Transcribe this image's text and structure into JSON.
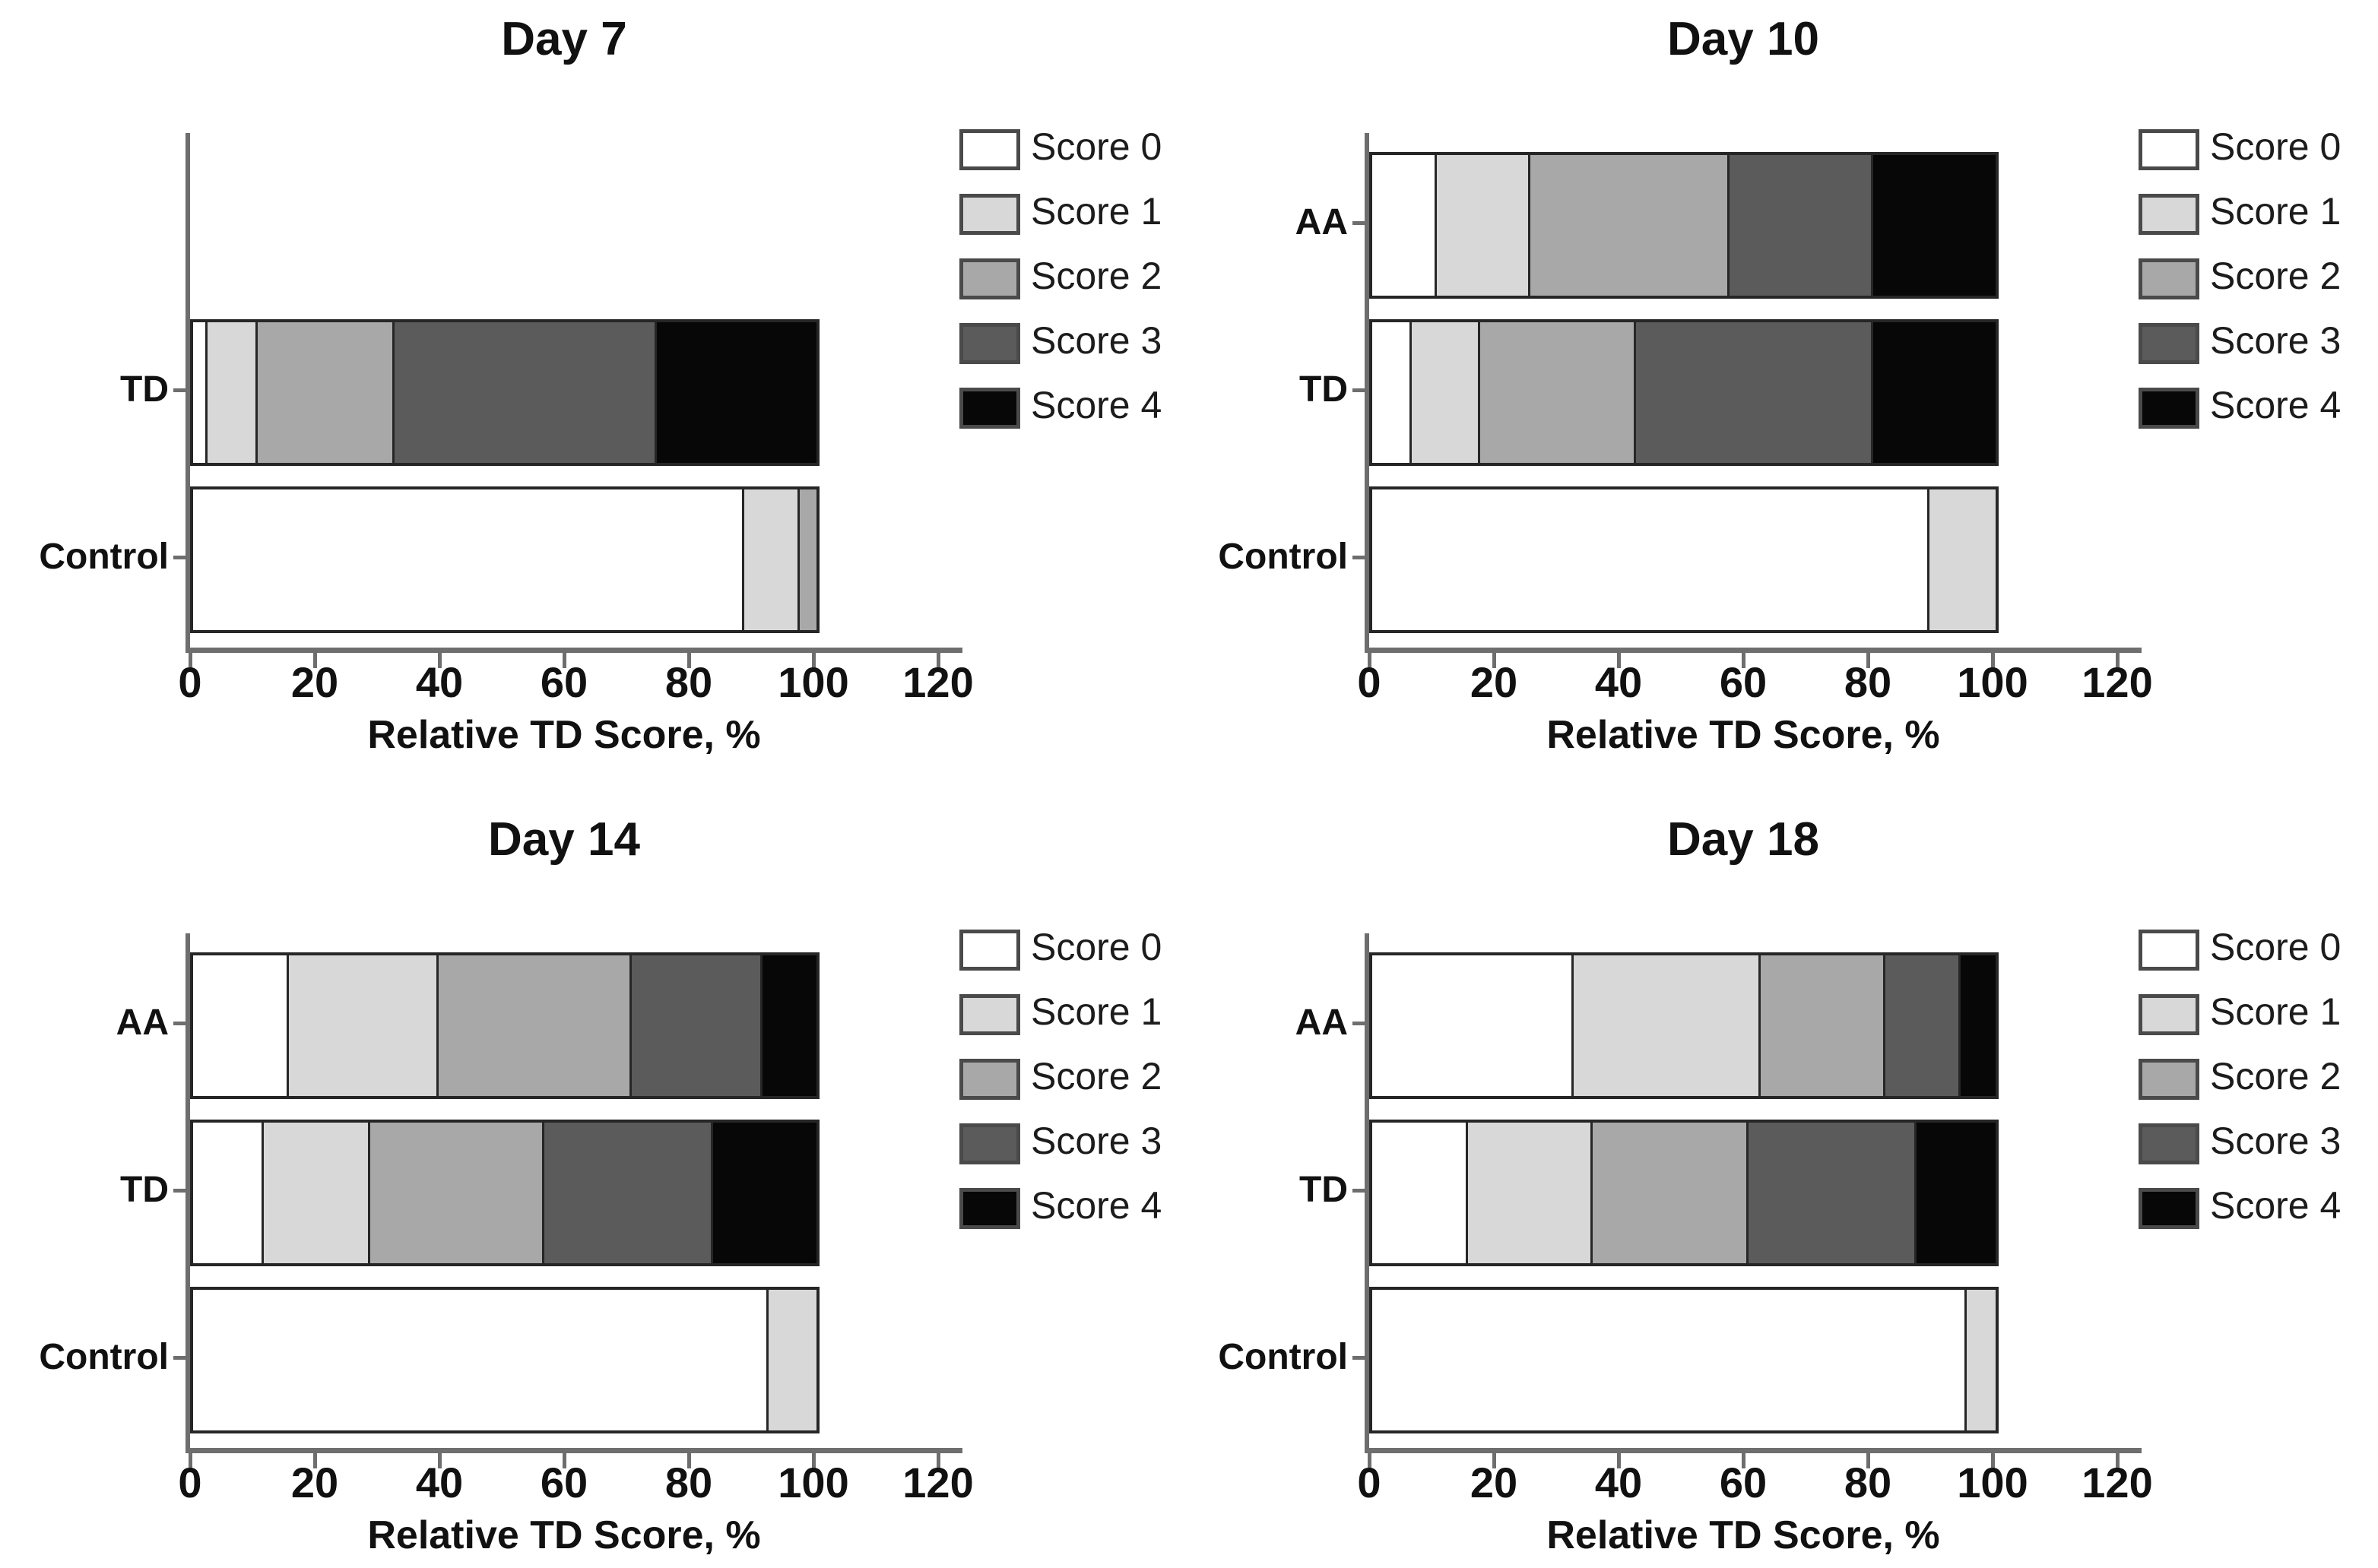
{
  "figure": {
    "background": "#ffffff",
    "text_color": "#111111",
    "axis_color": "#6e6e6e",
    "bar_border_color": "#262626",
    "score_colors": [
      "#ffffff",
      "#d8d8d8",
      "#a8a8a8",
      "#5b5b5b",
      "#070707"
    ],
    "legend_labels": [
      "Score 0",
      "Score 1",
      "Score 2",
      "Score 3",
      "Score 4"
    ]
  },
  "chart_data": [
    {
      "type": "bar",
      "stacked": true,
      "orientation": "horizontal",
      "title": "Day 7",
      "xlabel": "Relative TD Score, %",
      "xlim": [
        0,
        120
      ],
      "x_ticks": [
        0,
        20,
        40,
        60,
        80,
        100,
        120
      ],
      "legend": [
        "Score 0",
        "Score 1",
        "Score 2",
        "Score 3",
        "Score 4"
      ],
      "legend_position": "upper right",
      "rows": [
        {
          "label": "TD",
          "slot": 1,
          "values": [
            2,
            8,
            22,
            42,
            26
          ]
        },
        {
          "label": "Control",
          "slot": 2,
          "values": [
            88,
            9,
            3,
            0,
            0
          ]
        }
      ]
    },
    {
      "type": "bar",
      "stacked": true,
      "orientation": "horizontal",
      "title": "Day 10",
      "xlabel": "Relative TD Score, %",
      "xlim": [
        0,
        120
      ],
      "x_ticks": [
        0,
        20,
        40,
        60,
        80,
        100,
        120
      ],
      "legend": [
        "Score 0",
        "Score 1",
        "Score 2",
        "Score 3",
        "Score 4"
      ],
      "legend_position": "upper right",
      "rows": [
        {
          "label": "AA",
          "slot": 0,
          "values": [
            10,
            15,
            32,
            23,
            20
          ]
        },
        {
          "label": "TD",
          "slot": 1,
          "values": [
            6,
            11,
            25,
            38,
            20
          ]
        },
        {
          "label": "Control",
          "slot": 2,
          "values": [
            89,
            11,
            0,
            0,
            0
          ]
        }
      ]
    },
    {
      "type": "bar",
      "stacked": true,
      "orientation": "horizontal",
      "title": "Day 14",
      "xlabel": "Relative TD Score, %",
      "xlim": [
        0,
        120
      ],
      "x_ticks": [
        0,
        20,
        40,
        60,
        80,
        100,
        120
      ],
      "legend": [
        "Score 0",
        "Score 1",
        "Score 2",
        "Score 3",
        "Score 4"
      ],
      "legend_position": "upper right",
      "rows": [
        {
          "label": "AA",
          "slot": 0,
          "values": [
            15,
            24,
            31,
            21,
            9
          ]
        },
        {
          "label": "TD",
          "slot": 1,
          "values": [
            11,
            17,
            28,
            27,
            17
          ]
        },
        {
          "label": "Control",
          "slot": 2,
          "values": [
            92,
            8,
            0,
            0,
            0
          ]
        }
      ]
    },
    {
      "type": "bar",
      "stacked": true,
      "orientation": "horizontal",
      "title": "Day 18",
      "xlabel": "Relative TD Score, %",
      "xlim": [
        0,
        120
      ],
      "x_ticks": [
        0,
        20,
        40,
        60,
        80,
        100,
        120
      ],
      "legend": [
        "Score 0",
        "Score 1",
        "Score 2",
        "Score 3",
        "Score 4"
      ],
      "legend_position": "upper right",
      "rows": [
        {
          "label": "AA",
          "slot": 0,
          "values": [
            32,
            30,
            20,
            12,
            6
          ]
        },
        {
          "label": "TD",
          "slot": 1,
          "values": [
            15,
            20,
            25,
            27,
            13
          ]
        },
        {
          "label": "Control",
          "slot": 2,
          "values": [
            95,
            5,
            0,
            0,
            0
          ]
        }
      ]
    }
  ]
}
